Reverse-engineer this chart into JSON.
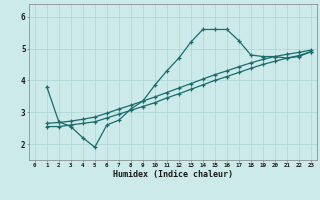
{
  "title": "",
  "xlabel": "Humidex (Indice chaleur)",
  "bg_color": "#cceaea",
  "line_color": "#1a6b6b",
  "grid_color": "#aad4d4",
  "xlim": [
    -0.5,
    23.5
  ],
  "ylim": [
    1.5,
    6.4
  ],
  "yticks": [
    2,
    3,
    4,
    5,
    6
  ],
  "xticks": [
    0,
    1,
    2,
    3,
    4,
    5,
    6,
    7,
    8,
    9,
    10,
    11,
    12,
    13,
    14,
    15,
    16,
    17,
    18,
    19,
    20,
    21,
    22,
    23
  ],
  "line1_x": [
    1,
    2,
    3,
    4,
    5,
    6,
    7,
    8,
    9,
    10,
    11,
    12,
    13,
    14,
    15,
    16,
    17,
    18,
    19,
    20,
    21,
    22,
    23
  ],
  "line1_y": [
    3.8,
    2.7,
    2.55,
    2.2,
    1.9,
    2.6,
    2.75,
    3.1,
    3.35,
    3.85,
    4.3,
    4.7,
    5.2,
    5.6,
    5.6,
    5.6,
    5.25,
    4.8,
    4.75,
    4.75,
    4.7,
    4.75,
    4.9
  ],
  "line2_x": [
    1,
    2,
    3,
    4,
    5,
    6,
    7,
    8,
    9,
    10,
    11,
    12,
    13,
    14,
    15,
    16,
    17,
    18,
    19,
    20,
    21,
    22,
    23
  ],
  "line2_y": [
    2.55,
    2.55,
    2.6,
    2.65,
    2.7,
    2.82,
    2.94,
    3.06,
    3.18,
    3.3,
    3.45,
    3.58,
    3.72,
    3.86,
    4.0,
    4.12,
    4.25,
    4.38,
    4.5,
    4.6,
    4.7,
    4.78,
    4.9
  ],
  "line3_x": [
    1,
    2,
    3,
    4,
    5,
    6,
    7,
    8,
    9,
    10,
    11,
    12,
    13,
    14,
    15,
    16,
    17,
    18,
    19,
    20,
    21,
    22,
    23
  ],
  "line3_y": [
    2.65,
    2.68,
    2.72,
    2.78,
    2.85,
    2.97,
    3.1,
    3.22,
    3.35,
    3.48,
    3.62,
    3.76,
    3.9,
    4.04,
    4.18,
    4.3,
    4.43,
    4.55,
    4.66,
    4.75,
    4.82,
    4.88,
    4.95
  ]
}
